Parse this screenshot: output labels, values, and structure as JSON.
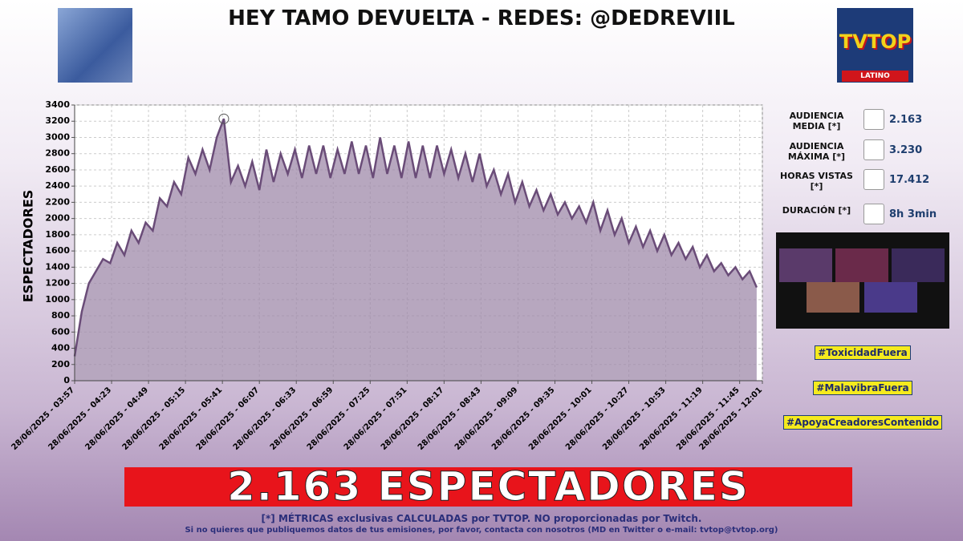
{
  "header": {
    "title": "HEY TAMO DEVUELTA - REDES: @DEDREVIIL"
  },
  "logo": {
    "name": "TVTOP",
    "subtitle": "LATINO"
  },
  "chart_data": {
    "type": "area",
    "y_label": "ESPECTADORES",
    "x": [
      "28/06/2025 - 03:57",
      "28/06/2025 - 04:02",
      "28/06/2025 - 04:07",
      "28/06/2025 - 04:12",
      "28/06/2025 - 04:17",
      "28/06/2025 - 04:22",
      "28/06/2025 - 04:27",
      "28/06/2025 - 04:32",
      "28/06/2025 - 04:37",
      "28/06/2025 - 04:42",
      "28/06/2025 - 04:47",
      "28/06/2025 - 04:52",
      "28/06/2025 - 04:57",
      "28/06/2025 - 05:02",
      "28/06/2025 - 05:07",
      "28/06/2025 - 05:12",
      "28/06/2025 - 05:17",
      "28/06/2025 - 05:22",
      "28/06/2025 - 05:27",
      "28/06/2025 - 05:32",
      "28/06/2025 - 05:37",
      "28/06/2025 - 05:42",
      "28/06/2025 - 05:47",
      "28/06/2025 - 05:52",
      "28/06/2025 - 05:57",
      "28/06/2025 - 06:02",
      "28/06/2025 - 06:07",
      "28/06/2025 - 06:12",
      "28/06/2025 - 06:17",
      "28/06/2025 - 06:22",
      "28/06/2025 - 06:27",
      "28/06/2025 - 06:32",
      "28/06/2025 - 06:37",
      "28/06/2025 - 06:42",
      "28/06/2025 - 06:47",
      "28/06/2025 - 06:52",
      "28/06/2025 - 06:57",
      "28/06/2025 - 07:02",
      "28/06/2025 - 07:07",
      "28/06/2025 - 07:12",
      "28/06/2025 - 07:17",
      "28/06/2025 - 07:22",
      "28/06/2025 - 07:27",
      "28/06/2025 - 07:32",
      "28/06/2025 - 07:37",
      "28/06/2025 - 07:42",
      "28/06/2025 - 07:47",
      "28/06/2025 - 07:52",
      "28/06/2025 - 07:57",
      "28/06/2025 - 08:02",
      "28/06/2025 - 08:07",
      "28/06/2025 - 08:12",
      "28/06/2025 - 08:17",
      "28/06/2025 - 08:22",
      "28/06/2025 - 08:27",
      "28/06/2025 - 08:32",
      "28/06/2025 - 08:37",
      "28/06/2025 - 08:42",
      "28/06/2025 - 08:47",
      "28/06/2025 - 08:52",
      "28/06/2025 - 08:57",
      "28/06/2025 - 09:02",
      "28/06/2025 - 09:07",
      "28/06/2025 - 09:12",
      "28/06/2025 - 09:17",
      "28/06/2025 - 09:22",
      "28/06/2025 - 09:27",
      "28/06/2025 - 09:32",
      "28/06/2025 - 09:37",
      "28/06/2025 - 09:42",
      "28/06/2025 - 09:47",
      "28/06/2025 - 09:52",
      "28/06/2025 - 09:57",
      "28/06/2025 - 10:02",
      "28/06/2025 - 10:07",
      "28/06/2025 - 10:12",
      "28/06/2025 - 10:17",
      "28/06/2025 - 10:22",
      "28/06/2025 - 10:27",
      "28/06/2025 - 10:32",
      "28/06/2025 - 10:37",
      "28/06/2025 - 10:42",
      "28/06/2025 - 10:47",
      "28/06/2025 - 10:52",
      "28/06/2025 - 10:57",
      "28/06/2025 - 11:02",
      "28/06/2025 - 11:07",
      "28/06/2025 - 11:12",
      "28/06/2025 - 11:17",
      "28/06/2025 - 11:22",
      "28/06/2025 - 11:27",
      "28/06/2025 - 11:32",
      "28/06/2025 - 11:37",
      "28/06/2025 - 11:42",
      "28/06/2025 - 11:47",
      "28/06/2025 - 11:52",
      "28/06/2025 - 11:57"
    ],
    "series": [
      {
        "color": "#6a4c78",
        "fill": "#9f8aa9",
        "values": [
          300,
          850,
          1200,
          1350,
          1500,
          1450,
          1700,
          1550,
          1850,
          1700,
          1950,
          1850,
          2250,
          2150,
          2450,
          2300,
          2750,
          2550,
          2850,
          2600,
          3000,
          3230,
          2450,
          2650,
          2400,
          2700,
          2350,
          2850,
          2450,
          2800,
          2550,
          2850,
          2500,
          2900,
          2550,
          2900,
          2500,
          2850,
          2550,
          2950,
          2550,
          2900,
          2500,
          3000,
          2550,
          2900,
          2500,
          2950,
          2500,
          2900,
          2500,
          2900,
          2550,
          2850,
          2500,
          2800,
          2450,
          2800,
          2400,
          2600,
          2300,
          2550,
          2200,
          2450,
          2150,
          2350,
          2100,
          2300,
          2050,
          2200,
          2000,
          2150,
          1950,
          2200,
          1850,
          2100,
          1800,
          2000,
          1700,
          1900,
          1650,
          1850,
          1600,
          1800,
          1550,
          1700,
          1500,
          1650,
          1400,
          1550,
          1350,
          1450,
          1300,
          1400,
          1250,
          1350,
          1150
        ]
      }
    ],
    "ylim": [
      0,
      3400
    ],
    "yticks": [
      0,
      200,
      400,
      600,
      800,
      1000,
      1200,
      1400,
      1600,
      1800,
      2000,
      2200,
      2400,
      2600,
      2800,
      3000,
      3200,
      3400
    ],
    "xticks": [
      "28/06/2025 - 03:57",
      "28/06/2025 - 04:23",
      "28/06/2025 - 04:49",
      "28/06/2025 - 05:15",
      "28/06/2025 - 05:41",
      "28/06/2025 - 06:07",
      "28/06/2025 - 06:33",
      "28/06/2025 - 06:59",
      "28/06/2025 - 07:25",
      "28/06/2025 - 07:51",
      "28/06/2025 - 08:17",
      "28/06/2025 - 08:43",
      "28/06/2025 - 09:09",
      "28/06/2025 - 09:35",
      "28/06/2025 - 10:01",
      "28/06/2025 - 10:27",
      "28/06/2025 - 10:53",
      "28/06/2025 - 11:19",
      "28/06/2025 - 11:45",
      "28/06/2025 - 12:01"
    ],
    "grid": true,
    "peak_marker": true
  },
  "stats": [
    {
      "label": "AUDIENCIA MEDIA [*]",
      "value": "2.163"
    },
    {
      "label": "AUDIENCIA MÁXIMA [*]",
      "value": "3.230"
    },
    {
      "label": "HORAS VISTAS [*]",
      "value": "17.412"
    },
    {
      "label": "DURACIÓN [*]",
      "value": "8h 3min"
    }
  ],
  "hashtags": [
    "#ToxicidadFuera",
    "#MalavibraFuera",
    "#ApoyaCreadoresContenido"
  ],
  "banner": "2.163 ESPECTADORES",
  "footer": [
    "[*] MÉTRICAS exclusivas CALCULADAS por TVTOP. NO proporcionadas por Twitch.",
    "Si no quieres que publiquemos datos de tus emisiones, por favor, contacta con nosotros (MD en Twitter o e-mail: tvtop@tvtop.org)"
  ]
}
